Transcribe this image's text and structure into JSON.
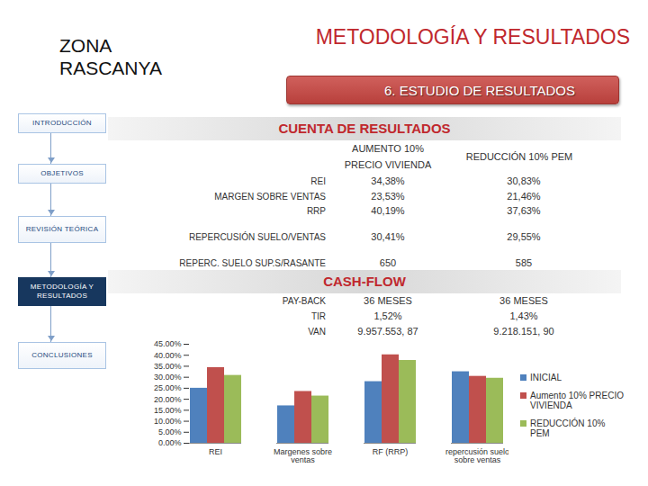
{
  "slide": {
    "zone": "ZONA RASCANYA",
    "title": "METODOLOGÍA Y RESULTADOS",
    "section": "6. ESTUDIO DE RESULTADOS",
    "nav": [
      {
        "label": "INTRODUCCIÓN",
        "active": false
      },
      {
        "label": "OBJETIVOS",
        "active": false
      },
      {
        "label": "REVISIÓN TEÓRICA",
        "active": false
      },
      {
        "label": "METODOLOGÍA Y RESULTADOS",
        "active": true
      },
      {
        "label": "CONCLUSIONES",
        "active": false
      }
    ],
    "results_table": {
      "title": "CUENTA DE RESULTADOS",
      "columns": [
        "AUMENTO 10% PRECIO VIVIENDA",
        "REDUCCIÓN 10% PEM"
      ],
      "groups": [
        [
          [
            "REI",
            "34,38%",
            "30,83%"
          ],
          [
            "MARGEN SOBRE VENTAS",
            "23,53%",
            "21,46%"
          ],
          [
            "RRP",
            "40,19%",
            "37,63%"
          ]
        ],
        [
          [
            "REPERCUSIÓN SUELO/VENTAS",
            "30,41%",
            "29,55%"
          ]
        ],
        [
          [
            "REPERC. SUELO SUP.S/RASANTE",
            "650",
            "585"
          ]
        ]
      ]
    },
    "cashflow_table": {
      "title": "CASH-FLOW",
      "rows": [
        [
          "PAY-BACK",
          "36 MESES",
          "36 MESES"
        ],
        [
          "TIR",
          "1,52%",
          "1,43%"
        ],
        [
          "VAN",
          "9.957.553, 87",
          "9.218.151, 90"
        ]
      ]
    }
  },
  "chart_data": {
    "type": "bar",
    "categories": [
      "REI",
      "Margenes sobre ventas",
      "RF (RRP)",
      "repercusión suelo sobre ventas"
    ],
    "series": [
      {
        "name": "INICIAL",
        "color": "#4f81bd",
        "values": [
          25,
          17,
          28,
          32.5
        ]
      },
      {
        "name": "Aumento 10% PRECIO VIVIENDA",
        "color": "#c0504d",
        "values": [
          34.38,
          23.53,
          40.19,
          30.41
        ]
      },
      {
        "name": "REDUCCIÓN 10% PEM",
        "color": "#9bbb59",
        "values": [
          30.83,
          21.46,
          37.63,
          29.55
        ]
      }
    ],
    "ylim": [
      0,
      45
    ],
    "yticks": [
      {
        "value": 0,
        "label": "0.00%"
      },
      {
        "value": 5,
        "label": "5.00%"
      },
      {
        "value": 10,
        "label": "10.00%"
      },
      {
        "value": 15,
        "label": "15.00%"
      },
      {
        "value": 20,
        "label": "20.00%"
      },
      {
        "value": 25,
        "label": "25.00%"
      },
      {
        "value": 30,
        "label": "30.00%"
      },
      {
        "value": 35,
        "label": "35.00%"
      },
      {
        "value": 40,
        "label": "40.00%"
      },
      {
        "value": 45,
        "label": "45.00%"
      }
    ],
    "grid": false,
    "legend": "right"
  }
}
